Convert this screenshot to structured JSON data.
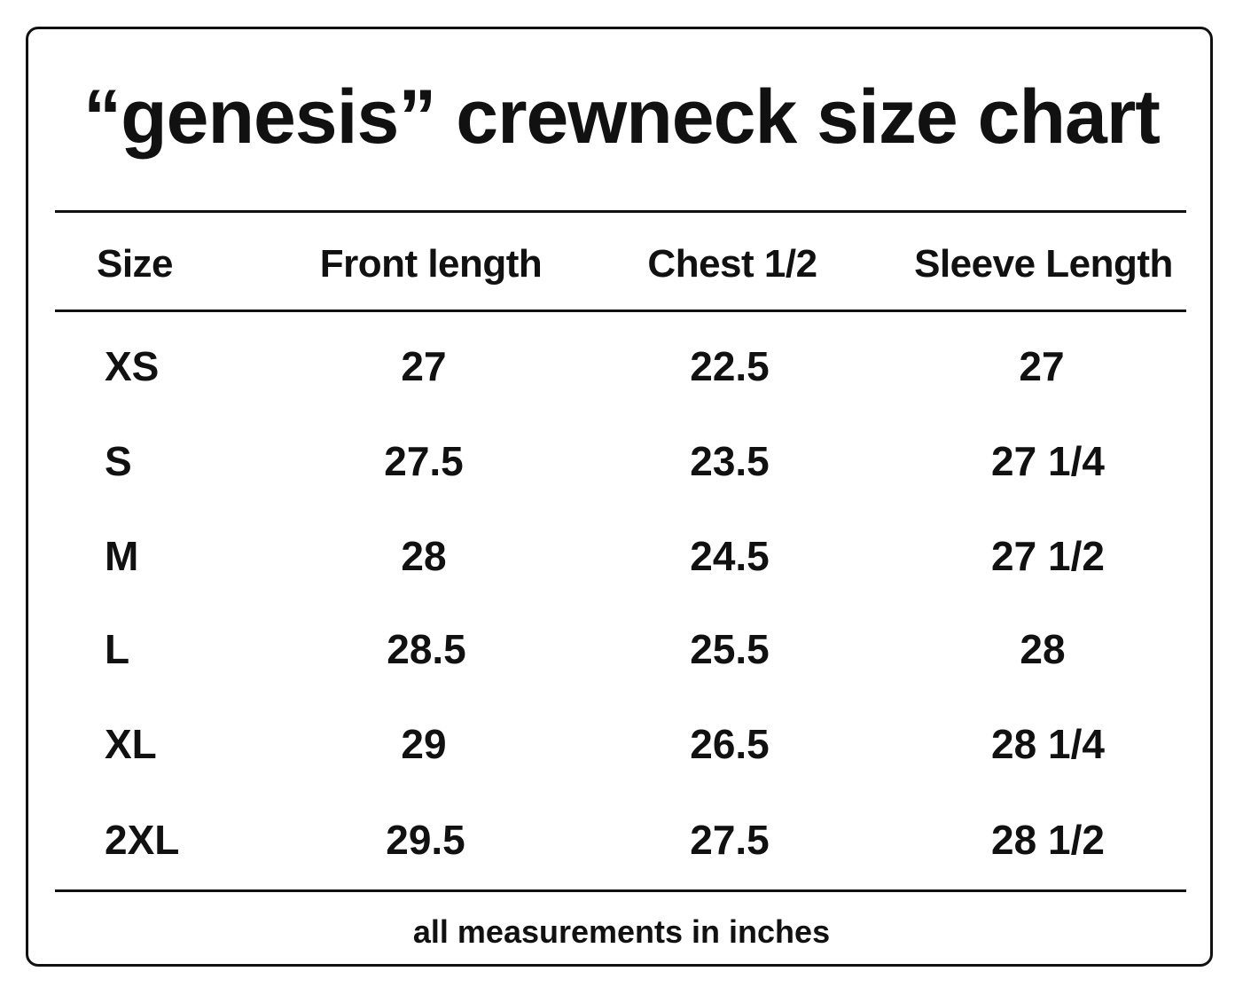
{
  "title": "“genesis” crewneck size chart",
  "table": {
    "headers": [
      "Size",
      "Front length",
      "Chest 1/2",
      "Sleeve Length"
    ],
    "rows": [
      {
        "size": "XS",
        "front_length": "27",
        "chest_half": "22.5",
        "sleeve_length": "27"
      },
      {
        "size": "S",
        "front_length": "27.5",
        "chest_half": "23.5",
        "sleeve_length": "27 1/4"
      },
      {
        "size": "M",
        "front_length": "28",
        "chest_half": "24.5",
        "sleeve_length": "27 1/2"
      },
      {
        "size": "L",
        "front_length": "28.5",
        "chest_half": "25.5",
        "sleeve_length": "28"
      },
      {
        "size": "XL",
        "front_length": "29",
        "chest_half": "26.5",
        "sleeve_length": "28 1/4"
      },
      {
        "size": "2XL",
        "front_length": "29.5",
        "chest_half": "27.5",
        "sleeve_length": "28 1/2"
      }
    ]
  },
  "footer": "all measurements in inches"
}
